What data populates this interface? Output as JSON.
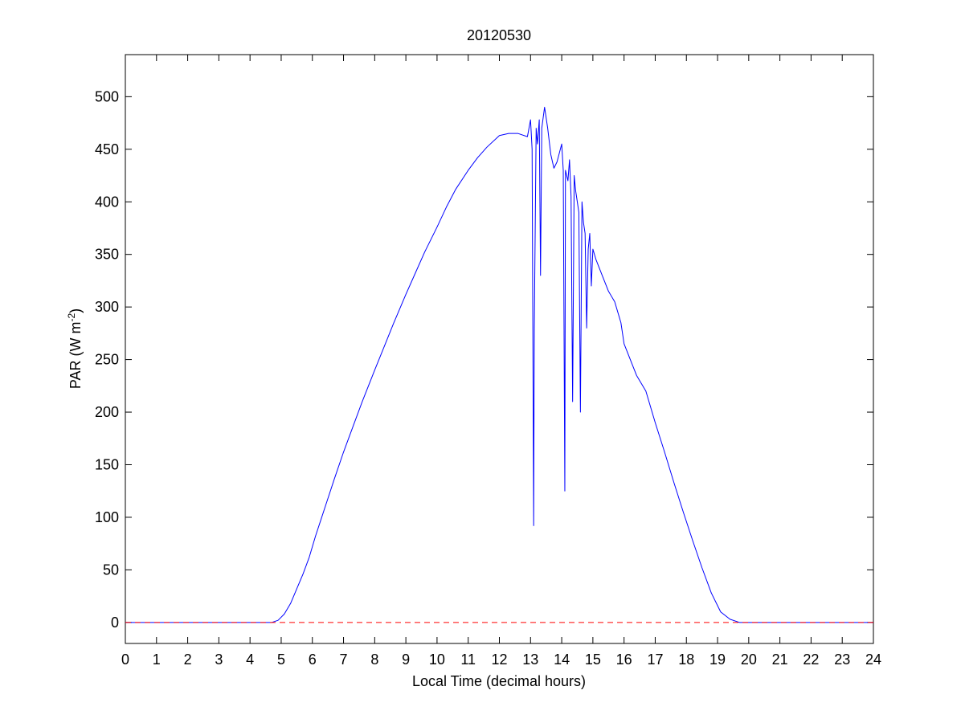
{
  "chart_data": {
    "type": "line",
    "title": "20120530",
    "xlabel": "Local Time (decimal hours)",
    "ylabel": {
      "base": "PAR (W m",
      "sup": "-2",
      "tail": ")"
    },
    "xlim": [
      0,
      24
    ],
    "ylim": [
      -20,
      540
    ],
    "xticks": [
      0,
      1,
      2,
      3,
      4,
      5,
      6,
      7,
      8,
      9,
      10,
      11,
      12,
      13,
      14,
      15,
      16,
      17,
      18,
      19,
      20,
      21,
      22,
      23,
      24
    ],
    "yticks": [
      0,
      50,
      100,
      150,
      200,
      250,
      300,
      350,
      400,
      450,
      500
    ],
    "grid": false,
    "legend": "none",
    "series": [
      {
        "color": "#0000ff",
        "style": "solid",
        "points": [
          [
            0,
            0
          ],
          [
            4.7,
            0
          ],
          [
            4.9,
            2
          ],
          [
            5.1,
            8
          ],
          [
            5.3,
            18
          ],
          [
            5.5,
            32
          ],
          [
            5.7,
            46
          ],
          [
            5.9,
            62
          ],
          [
            6.1,
            82
          ],
          [
            6.3,
            100
          ],
          [
            6.5,
            118
          ],
          [
            6.7,
            136
          ],
          [
            7.0,
            162
          ],
          [
            7.3,
            186
          ],
          [
            7.6,
            210
          ],
          [
            8.0,
            240
          ],
          [
            8.3,
            262
          ],
          [
            8.6,
            284
          ],
          [
            9.0,
            312
          ],
          [
            9.3,
            332
          ],
          [
            9.6,
            352
          ],
          [
            10.0,
            376
          ],
          [
            10.3,
            395
          ],
          [
            10.6,
            412
          ],
          [
            11.0,
            430
          ],
          [
            11.3,
            442
          ],
          [
            11.6,
            452
          ],
          [
            12.0,
            463
          ],
          [
            12.3,
            465
          ],
          [
            12.6,
            465
          ],
          [
            12.9,
            462
          ],
          [
            13.0,
            478
          ],
          [
            13.05,
            450
          ],
          [
            13.1,
            92
          ],
          [
            13.12,
            280
          ],
          [
            13.18,
            470
          ],
          [
            13.22,
            455
          ],
          [
            13.28,
            478
          ],
          [
            13.32,
            330
          ],
          [
            13.36,
            470
          ],
          [
            13.45,
            490
          ],
          [
            13.55,
            470
          ],
          [
            13.65,
            445
          ],
          [
            13.75,
            432
          ],
          [
            13.85,
            438
          ],
          [
            14.0,
            455
          ],
          [
            14.05,
            430
          ],
          [
            14.1,
            125
          ],
          [
            14.12,
            430
          ],
          [
            14.2,
            420
          ],
          [
            14.25,
            440
          ],
          [
            14.3,
            405
          ],
          [
            14.35,
            210
          ],
          [
            14.4,
            425
          ],
          [
            14.45,
            410
          ],
          [
            14.5,
            400
          ],
          [
            14.55,
            390
          ],
          [
            14.6,
            200
          ],
          [
            14.65,
            400
          ],
          [
            14.7,
            380
          ],
          [
            14.75,
            370
          ],
          [
            14.8,
            280
          ],
          [
            14.85,
            355
          ],
          [
            14.9,
            370
          ],
          [
            14.95,
            320
          ],
          [
            15.0,
            355
          ],
          [
            15.1,
            345
          ],
          [
            15.3,
            330
          ],
          [
            15.5,
            315
          ],
          [
            15.7,
            305
          ],
          [
            15.9,
            285
          ],
          [
            16.0,
            265
          ],
          [
            16.2,
            250
          ],
          [
            16.4,
            235
          ],
          [
            16.7,
            220
          ],
          [
            17.0,
            190
          ],
          [
            17.3,
            162
          ],
          [
            17.6,
            133
          ],
          [
            17.9,
            105
          ],
          [
            18.2,
            78
          ],
          [
            18.5,
            52
          ],
          [
            18.8,
            28
          ],
          [
            19.1,
            10
          ],
          [
            19.4,
            3
          ],
          [
            19.7,
            0
          ],
          [
            24,
            0
          ]
        ]
      },
      {
        "color": "#ff0000",
        "style": "dashed",
        "points": [
          [
            0,
            0
          ],
          [
            24,
            0
          ]
        ]
      }
    ]
  }
}
